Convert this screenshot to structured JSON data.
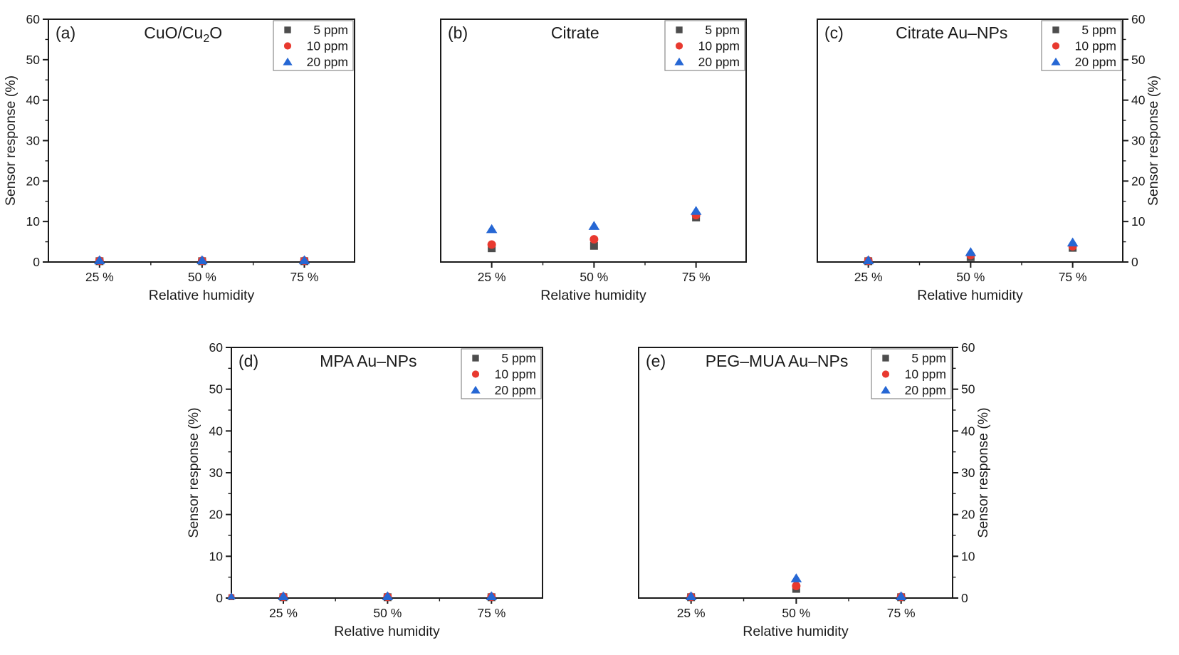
{
  "figure": {
    "background": "#ffffff",
    "text_color": "#1a1a1a",
    "x_axis_label": "Relative humidity",
    "y_axis_label": "Sensor response (%)",
    "x_categories": [
      "25 %",
      "50 %",
      "75 %"
    ],
    "y_ticks": [
      "0",
      "10",
      "20",
      "30",
      "40",
      "50",
      "60"
    ],
    "y_range": [
      0,
      60
    ],
    "legend": {
      "position": "top-right",
      "items": [
        {
          "label": "5 ppm",
          "marker": "square",
          "color": "#4d4d4d"
        },
        {
          "label": "10 ppm",
          "marker": "circle",
          "color": "#e8392f"
        },
        {
          "label": "20 ppm",
          "marker": "triangle",
          "color": "#2667d4"
        }
      ]
    }
  },
  "chart_data": [
    {
      "id": "a",
      "panel_label": "(a)",
      "title": "CuO/Cu2O",
      "title_parts": [
        {
          "t": "CuO/Cu"
        },
        {
          "t": "2",
          "sub": true
        },
        {
          "t": "O"
        }
      ],
      "type": "scatter",
      "x_categories": [
        "25 %",
        "50 %",
        "75 %"
      ],
      "xlabel": "Relative humidity",
      "ylabel": "Sensor response (%)",
      "y_axis_side": "left",
      "ylim": [
        0,
        60
      ],
      "grid": false,
      "legend_position": "top-right",
      "series": [
        {
          "name": "5 ppm",
          "marker": "square",
          "color": "#4d4d4d",
          "values": [
            0.2,
            0.2,
            0.2
          ]
        },
        {
          "name": "10 ppm",
          "marker": "circle",
          "color": "#e8392f",
          "values": [
            0.3,
            0.3,
            0.3
          ]
        },
        {
          "name": "20 ppm",
          "marker": "triangle",
          "color": "#2667d4",
          "values": [
            0.4,
            0.4,
            0.4
          ]
        }
      ]
    },
    {
      "id": "b",
      "panel_label": "(b)",
      "title": "Citrate",
      "title_parts": [
        {
          "t": "Citrate"
        }
      ],
      "type": "scatter",
      "x_categories": [
        "25 %",
        "50 %",
        "75 %"
      ],
      "xlabel": "Relative humidity",
      "ylabel": "",
      "y_axis_side": "none",
      "ylim": [
        0,
        60
      ],
      "grid": false,
      "legend_position": "top-right",
      "series": [
        {
          "name": "5 ppm",
          "marker": "square",
          "color": "#4d4d4d",
          "values": [
            3.4,
            4.0,
            11.0
          ]
        },
        {
          "name": "10 ppm",
          "marker": "circle",
          "color": "#e8392f",
          "values": [
            4.3,
            5.6,
            11.6
          ]
        },
        {
          "name": "20 ppm",
          "marker": "triangle",
          "color": "#2667d4",
          "values": [
            8.1,
            8.9,
            12.6
          ]
        }
      ]
    },
    {
      "id": "c",
      "panel_label": "(c)",
      "title": "Citrate Au–NPs",
      "title_parts": [
        {
          "t": "Citrate Au–NPs"
        }
      ],
      "type": "scatter",
      "x_categories": [
        "25 %",
        "50 %",
        "75 %"
      ],
      "xlabel": "Relative humidity",
      "ylabel": "Sensor response (%)",
      "y_axis_side": "right",
      "ylim": [
        0,
        60
      ],
      "grid": false,
      "legend_position": "top-right",
      "series": [
        {
          "name": "5 ppm",
          "marker": "square",
          "color": "#4d4d4d",
          "values": [
            0.2,
            1.2,
            3.5
          ]
        },
        {
          "name": "10 ppm",
          "marker": "circle",
          "color": "#e8392f",
          "values": [
            0.3,
            1.7,
            3.9
          ]
        },
        {
          "name": "20 ppm",
          "marker": "triangle",
          "color": "#2667d4",
          "values": [
            0.4,
            2.4,
            4.8
          ]
        }
      ]
    },
    {
      "id": "d",
      "panel_label": "(d)",
      "title": "MPA Au–NPs",
      "title_parts": [
        {
          "t": "MPA Au–NPs"
        }
      ],
      "type": "scatter",
      "x_categories": [
        "25 %",
        "50 %",
        "75 %"
      ],
      "xlabel": "Relative humidity",
      "ylabel": "Sensor response (%)",
      "y_axis_side": "left",
      "ylim": [
        0,
        60
      ],
      "grid": false,
      "legend_position": "top-right",
      "origin_marker": {
        "values": [
          0.2,
          0.3,
          0.4
        ]
      },
      "series": [
        {
          "name": "5 ppm",
          "marker": "square",
          "color": "#4d4d4d",
          "values": [
            0.2,
            0.2,
            0.2
          ]
        },
        {
          "name": "10 ppm",
          "marker": "circle",
          "color": "#e8392f",
          "values": [
            0.3,
            0.3,
            0.3
          ]
        },
        {
          "name": "20 ppm",
          "marker": "triangle",
          "color": "#2667d4",
          "values": [
            0.4,
            0.4,
            0.4
          ]
        }
      ]
    },
    {
      "id": "e",
      "panel_label": "(e)",
      "title": "PEG–MUA Au–NPs",
      "title_parts": [
        {
          "t": "PEG–MUA Au–NPs"
        }
      ],
      "type": "scatter",
      "x_categories": [
        "25 %",
        "50 %",
        "75 %"
      ],
      "xlabel": "Relative humidity",
      "ylabel": "Sensor response (%)",
      "y_axis_side": "right",
      "ylim": [
        0,
        60
      ],
      "grid": false,
      "legend_position": "top-right",
      "series": [
        {
          "name": "5 ppm",
          "marker": "square",
          "color": "#4d4d4d",
          "values": [
            0.2,
            2.2,
            0.2
          ]
        },
        {
          "name": "10 ppm",
          "marker": "circle",
          "color": "#e8392f",
          "values": [
            0.3,
            2.9,
            0.3
          ]
        },
        {
          "name": "20 ppm",
          "marker": "triangle",
          "color": "#2667d4",
          "values": [
            0.4,
            4.7,
            0.4
          ]
        }
      ]
    }
  ]
}
